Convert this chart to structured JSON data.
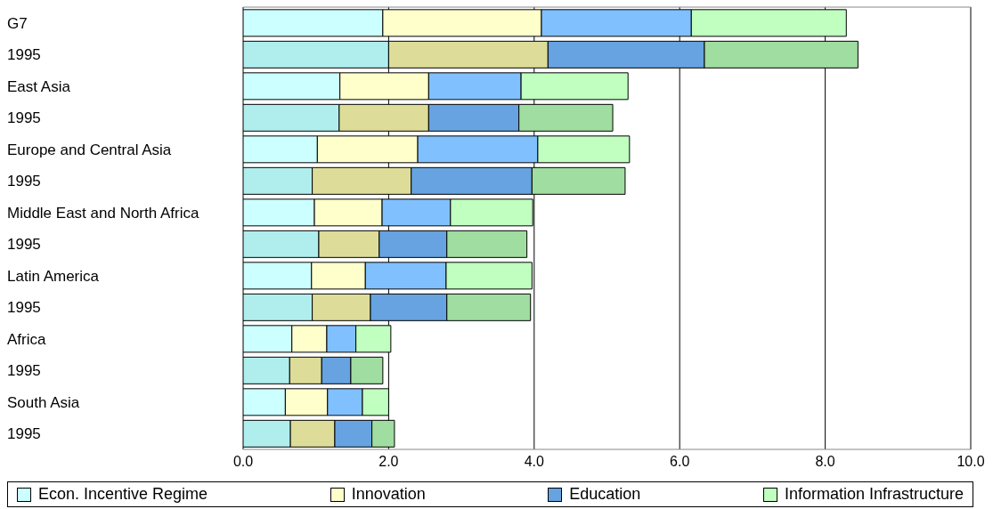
{
  "chart_data": {
    "type": "bar",
    "orientation": "horizontal",
    "stacked": true,
    "categories": [
      "G7",
      "1995",
      "East Asia",
      "1995",
      "Europe and Central Asia",
      "1995",
      "Middle East and North Africa",
      "1995",
      "Latin America",
      "1995",
      "Africa",
      "1995",
      "South Asia",
      "1995"
    ],
    "series": [
      {
        "name": "Econ. Incentive Regime",
        "color": "#ccffff",
        "colors": [
          "#ccffff",
          "#b0eeee",
          "#ccffff",
          "#b0eeee",
          "#ccffff",
          "#b0eeee",
          "#ccffff",
          "#b0eeee",
          "#ccffff",
          "#b0eeee",
          "#ccffff",
          "#b0eeee",
          "#ccffff",
          "#b0eeee"
        ],
        "values": [
          1.92,
          2.0,
          1.33,
          1.32,
          1.02,
          0.95,
          0.98,
          1.04,
          0.94,
          0.95,
          0.67,
          0.64,
          0.58,
          0.65
        ]
      },
      {
        "name": "Innovation",
        "color": "#ffffcc",
        "colors": [
          "#ffffcc",
          "#dddd99",
          "#ffffcc",
          "#dddd99",
          "#ffffcc",
          "#dddd99",
          "#ffffcc",
          "#dddd99",
          "#ffffcc",
          "#dddd99",
          "#ffffcc",
          "#dddd99",
          "#ffffcc",
          "#dddd99"
        ],
        "values": [
          2.18,
          2.19,
          1.22,
          1.23,
          1.38,
          1.36,
          0.93,
          0.83,
          0.74,
          0.8,
          0.48,
          0.44,
          0.58,
          0.61
        ]
      },
      {
        "name": "Education",
        "color": "#66a3e0",
        "colors": [
          "#80c0ff",
          "#66a3e0",
          "#80c0ff",
          "#66a3e0",
          "#80c0ff",
          "#66a3e0",
          "#80c0ff",
          "#66a3e0",
          "#80c0ff",
          "#66a3e0",
          "#80c0ff",
          "#66a3e0",
          "#80c0ff",
          "#66a3e0"
        ],
        "values": [
          2.06,
          2.15,
          1.27,
          1.24,
          1.65,
          1.66,
          0.94,
          0.93,
          1.11,
          1.05,
          0.4,
          0.4,
          0.48,
          0.51
        ]
      },
      {
        "name": "Information Infrastructure",
        "color": "#c0ffc0",
        "colors": [
          "#c0ffc0",
          "#a0dda0",
          "#c0ffc0",
          "#a0dda0",
          "#c0ffc0",
          "#a0dda0",
          "#c0ffc0",
          "#a0dda0",
          "#c0ffc0",
          "#a0dda0",
          "#c0ffc0",
          "#a0dda0",
          "#c0ffc0",
          "#a0dda0"
        ],
        "values": [
          2.13,
          2.11,
          1.47,
          1.29,
          1.26,
          1.28,
          1.13,
          1.1,
          1.18,
          1.15,
          0.48,
          0.44,
          0.36,
          0.31
        ]
      }
    ],
    "xlim": [
      0,
      10
    ],
    "xticks": [
      {
        "value": 0,
        "label": "0.0"
      },
      {
        "value": 2,
        "label": "2.0"
      },
      {
        "value": 4,
        "label": "4.0"
      },
      {
        "value": 6,
        "label": "6.0"
      },
      {
        "value": 8,
        "label": "8.0"
      },
      {
        "value": 10,
        "label": "10.0"
      }
    ],
    "grid": "x",
    "legend": "bottom"
  }
}
